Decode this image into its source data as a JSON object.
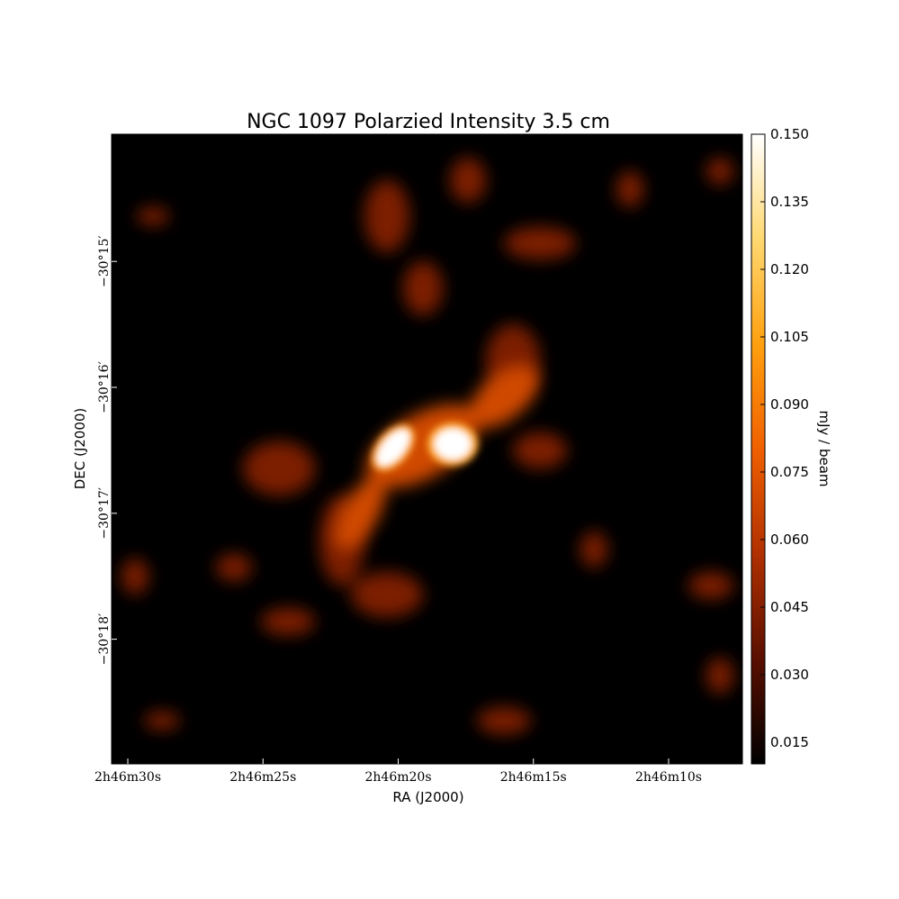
{
  "chart_data": {
    "type": "image",
    "title": "NGC 1097 Polarzied Intensity 3.5 cm",
    "xlabel": "RA (J2000)",
    "ylabel": "DEC (J2000)",
    "colorbar_label": "mJy / beam",
    "colormap": [
      "#000000",
      "#5a0f00",
      "#b03000",
      "#f06000",
      "#ffa010",
      "#ffd870",
      "#ffffff"
    ],
    "xlim": [
      30.6,
      7.27
    ],
    "xticks": [
      {
        "value": 30,
        "label": "2h46m30s"
      },
      {
        "value": 25,
        "label": "2h46m25s"
      },
      {
        "value": 20,
        "label": "2h46m20s"
      },
      {
        "value": 15,
        "label": "2h46m15s"
      },
      {
        "value": 10,
        "label": "2h46m10s"
      }
    ],
    "ylim": [
      18.99,
      13.99
    ],
    "yticks": [
      {
        "value": 15,
        "label": "−30°15′"
      },
      {
        "value": 16,
        "label": "−30°16′"
      },
      {
        "value": 17,
        "label": "−30°17′"
      },
      {
        "value": 18,
        "label": "−30°18′"
      }
    ],
    "clim": [
      0.0102,
      0.15
    ],
    "cticks": [
      0.015,
      {
        "value": 0.03,
        "label": "0.030"
      },
      0.045,
      {
        "value": 0.06,
        "label": "0.060"
      },
      0.075,
      {
        "value": 0.09,
        "label": "0.090"
      },
      0.105,
      {
        "value": 0.12,
        "label": "0.120"
      },
      0.135,
      {
        "value": 0.15,
        "label": "0.150"
      }
    ]
  }
}
